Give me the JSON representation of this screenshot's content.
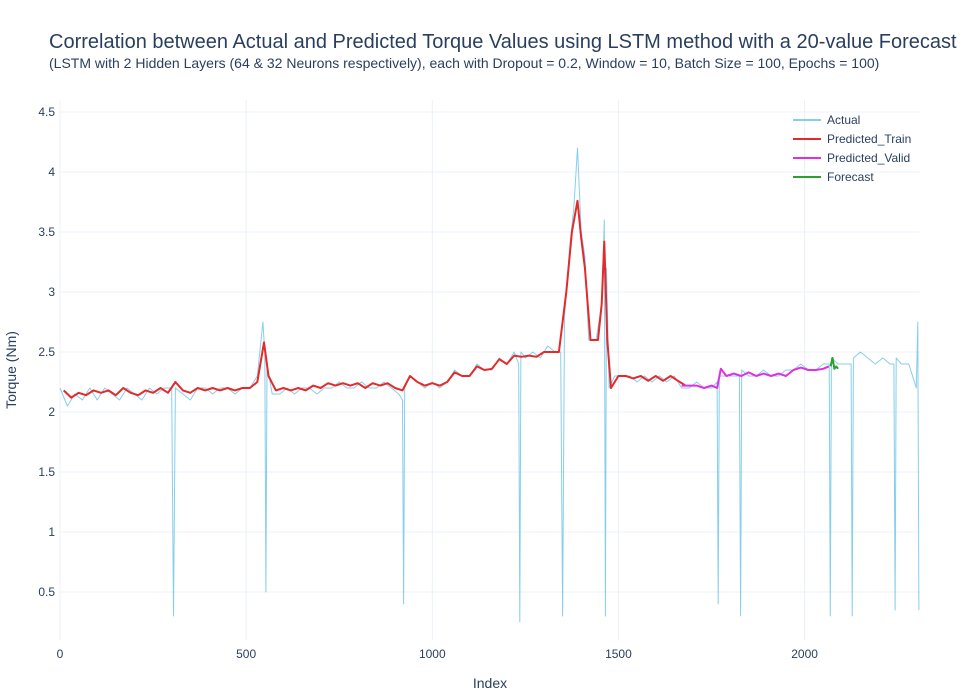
{
  "header": {
    "title": "Correlation between Actual and Predicted Torque Values using LSTM method with a 20-value Forecast",
    "subtitle": "(LSTM with 2 Hidden Layers (64 & 32 Neurons respectively), each with Dropout = 0.2, Window = 10, Batch Size = 100, Epochs = 100)"
  },
  "chart_data": {
    "type": "line",
    "xlabel": "Index",
    "ylabel": "Torque (Nm)",
    "xlim": [
      0,
      2310
    ],
    "ylim": [
      0.1,
      4.6
    ],
    "x_ticks": [
      0,
      500,
      1000,
      1500,
      2000
    ],
    "y_ticks": [
      0.5,
      1,
      1.5,
      2,
      2.5,
      3,
      3.5,
      4,
      4.5
    ],
    "x_tick_labels": [
      "0",
      "500",
      "1000",
      "1500",
      "2000"
    ],
    "y_tick_labels": [
      "0.5",
      "1",
      "1.5",
      "2",
      "2.5",
      "3",
      "3.5",
      "4",
      "4.5"
    ],
    "grid": true,
    "legend_position": "top-right",
    "series": [
      {
        "name": "Actual",
        "color": "#87ceeb",
        "points": [
          [
            0,
            2.2
          ],
          [
            20,
            2.05
          ],
          [
            40,
            2.15
          ],
          [
            60,
            2.1
          ],
          [
            80,
            2.2
          ],
          [
            100,
            2.1
          ],
          [
            120,
            2.2
          ],
          [
            140,
            2.15
          ],
          [
            160,
            2.1
          ],
          [
            180,
            2.2
          ],
          [
            200,
            2.15
          ],
          [
            220,
            2.1
          ],
          [
            240,
            2.2
          ],
          [
            260,
            2.15
          ],
          [
            280,
            2.2
          ],
          [
            300,
            2.2
          ],
          [
            305,
            0.3
          ],
          [
            310,
            2.2
          ],
          [
            330,
            2.15
          ],
          [
            350,
            2.1
          ],
          [
            370,
            2.2
          ],
          [
            390,
            2.2
          ],
          [
            410,
            2.15
          ],
          [
            430,
            2.2
          ],
          [
            450,
            2.2
          ],
          [
            470,
            2.15
          ],
          [
            490,
            2.2
          ],
          [
            510,
            2.2
          ],
          [
            530,
            2.3
          ],
          [
            545,
            2.75
          ],
          [
            550,
            2.5
          ],
          [
            553,
            0.5
          ],
          [
            556,
            2.4
          ],
          [
            570,
            2.15
          ],
          [
            590,
            2.15
          ],
          [
            610,
            2.2
          ],
          [
            630,
            2.15
          ],
          [
            650,
            2.2
          ],
          [
            670,
            2.2
          ],
          [
            690,
            2.15
          ],
          [
            710,
            2.2
          ],
          [
            730,
            2.2
          ],
          [
            750,
            2.25
          ],
          [
            770,
            2.2
          ],
          [
            790,
            2.2
          ],
          [
            810,
            2.25
          ],
          [
            830,
            2.2
          ],
          [
            850,
            2.2
          ],
          [
            870,
            2.25
          ],
          [
            890,
            2.2
          ],
          [
            910,
            2.15
          ],
          [
            920,
            2.1
          ],
          [
            923,
            0.4
          ],
          [
            926,
            2.2
          ],
          [
            940,
            2.3
          ],
          [
            960,
            2.25
          ],
          [
            980,
            2.2
          ],
          [
            1000,
            2.25
          ],
          [
            1020,
            2.2
          ],
          [
            1040,
            2.25
          ],
          [
            1060,
            2.35
          ],
          [
            1080,
            2.3
          ],
          [
            1100,
            2.3
          ],
          [
            1120,
            2.4
          ],
          [
            1140,
            2.35
          ],
          [
            1160,
            2.35
          ],
          [
            1180,
            2.45
          ],
          [
            1200,
            2.4
          ],
          [
            1220,
            2.5
          ],
          [
            1232,
            2.4
          ],
          [
            1235,
            0.25
          ],
          [
            1238,
            2.5
          ],
          [
            1250,
            2.45
          ],
          [
            1270,
            2.5
          ],
          [
            1290,
            2.45
          ],
          [
            1310,
            2.55
          ],
          [
            1330,
            2.5
          ],
          [
            1345,
            2.5
          ],
          [
            1350,
            0.3
          ],
          [
            1355,
            2.8
          ],
          [
            1370,
            3.4
          ],
          [
            1380,
            3.7
          ],
          [
            1390,
            4.2
          ],
          [
            1400,
            3.5
          ],
          [
            1410,
            3.3
          ],
          [
            1420,
            2.6
          ],
          [
            1440,
            2.6
          ],
          [
            1455,
            2.9
          ],
          [
            1462,
            3.6
          ],
          [
            1465,
            0.3
          ],
          [
            1468,
            3.2
          ],
          [
            1475,
            2.2
          ],
          [
            1490,
            2.3
          ],
          [
            1510,
            2.3
          ],
          [
            1530,
            2.3
          ],
          [
            1550,
            2.25
          ],
          [
            1570,
            2.3
          ],
          [
            1590,
            2.25
          ],
          [
            1610,
            2.3
          ],
          [
            1630,
            2.25
          ],
          [
            1650,
            2.3
          ],
          [
            1670,
            2.2
          ],
          [
            1690,
            2.2
          ],
          [
            1710,
            2.25
          ],
          [
            1730,
            2.2
          ],
          [
            1750,
            2.2
          ],
          [
            1765,
            2.25
          ],
          [
            1768,
            0.4
          ],
          [
            1771,
            2.3
          ],
          [
            1790,
            2.3
          ],
          [
            1810,
            2.3
          ],
          [
            1825,
            2.3
          ],
          [
            1828,
            0.3
          ],
          [
            1831,
            2.35
          ],
          [
            1850,
            2.3
          ],
          [
            1870,
            2.3
          ],
          [
            1890,
            2.35
          ],
          [
            1910,
            2.3
          ],
          [
            1930,
            2.3
          ],
          [
            1950,
            2.35
          ],
          [
            1970,
            2.35
          ],
          [
            1990,
            2.4
          ],
          [
            2010,
            2.35
          ],
          [
            2030,
            2.35
          ],
          [
            2050,
            2.4
          ],
          [
            2066,
            2.4
          ],
          [
            2069,
            0.3
          ],
          [
            2072,
            2.45
          ],
          [
            2090,
            2.4
          ],
          [
            2110,
            2.4
          ],
          [
            2125,
            2.4
          ],
          [
            2128,
            0.3
          ],
          [
            2131,
            2.45
          ],
          [
            2150,
            2.5
          ],
          [
            2170,
            2.45
          ],
          [
            2190,
            2.4
          ],
          [
            2210,
            2.45
          ],
          [
            2230,
            2.4
          ],
          [
            2240,
            2.4
          ],
          [
            2243,
            0.35
          ],
          [
            2246,
            2.45
          ],
          [
            2260,
            2.4
          ],
          [
            2280,
            2.4
          ],
          [
            2300,
            2.2
          ],
          [
            2304,
            2.75
          ],
          [
            2307,
            0.35
          ]
        ]
      },
      {
        "name": "Predicted_Train",
        "color": "#e32b2b",
        "points": [
          [
            10,
            2.18
          ],
          [
            30,
            2.12
          ],
          [
            50,
            2.16
          ],
          [
            70,
            2.14
          ],
          [
            90,
            2.18
          ],
          [
            110,
            2.16
          ],
          [
            130,
            2.18
          ],
          [
            150,
            2.14
          ],
          [
            170,
            2.2
          ],
          [
            190,
            2.16
          ],
          [
            210,
            2.14
          ],
          [
            230,
            2.18
          ],
          [
            250,
            2.16
          ],
          [
            270,
            2.2
          ],
          [
            290,
            2.16
          ],
          [
            310,
            2.25
          ],
          [
            330,
            2.18
          ],
          [
            350,
            2.16
          ],
          [
            370,
            2.2
          ],
          [
            390,
            2.18
          ],
          [
            410,
            2.2
          ],
          [
            430,
            2.18
          ],
          [
            450,
            2.2
          ],
          [
            470,
            2.18
          ],
          [
            490,
            2.2
          ],
          [
            510,
            2.2
          ],
          [
            530,
            2.25
          ],
          [
            548,
            2.58
          ],
          [
            560,
            2.3
          ],
          [
            580,
            2.18
          ],
          [
            600,
            2.2
          ],
          [
            620,
            2.18
          ],
          [
            640,
            2.2
          ],
          [
            660,
            2.18
          ],
          [
            680,
            2.22
          ],
          [
            700,
            2.2
          ],
          [
            720,
            2.24
          ],
          [
            740,
            2.22
          ],
          [
            760,
            2.24
          ],
          [
            780,
            2.22
          ],
          [
            800,
            2.24
          ],
          [
            820,
            2.2
          ],
          [
            840,
            2.24
          ],
          [
            860,
            2.22
          ],
          [
            880,
            2.24
          ],
          [
            900,
            2.2
          ],
          [
            920,
            2.18
          ],
          [
            940,
            2.3
          ],
          [
            960,
            2.25
          ],
          [
            980,
            2.22
          ],
          [
            1000,
            2.24
          ],
          [
            1020,
            2.22
          ],
          [
            1040,
            2.25
          ],
          [
            1060,
            2.33
          ],
          [
            1080,
            2.3
          ],
          [
            1100,
            2.3
          ],
          [
            1120,
            2.38
          ],
          [
            1140,
            2.35
          ],
          [
            1160,
            2.36
          ],
          [
            1180,
            2.44
          ],
          [
            1200,
            2.4
          ],
          [
            1220,
            2.47
          ],
          [
            1240,
            2.46
          ],
          [
            1260,
            2.47
          ],
          [
            1280,
            2.46
          ],
          [
            1300,
            2.5
          ],
          [
            1320,
            2.5
          ],
          [
            1340,
            2.5
          ],
          [
            1360,
            3.0
          ],
          [
            1375,
            3.5
          ],
          [
            1390,
            3.76
          ],
          [
            1400,
            3.45
          ],
          [
            1410,
            3.2
          ],
          [
            1425,
            2.6
          ],
          [
            1445,
            2.6
          ],
          [
            1455,
            2.9
          ],
          [
            1462,
            3.42
          ],
          [
            1470,
            2.6
          ],
          [
            1480,
            2.2
          ],
          [
            1500,
            2.3
          ],
          [
            1520,
            2.3
          ],
          [
            1540,
            2.28
          ],
          [
            1560,
            2.3
          ],
          [
            1580,
            2.26
          ],
          [
            1600,
            2.3
          ],
          [
            1620,
            2.26
          ],
          [
            1640,
            2.3
          ],
          [
            1660,
            2.26
          ],
          [
            1680,
            2.22
          ]
        ]
      },
      {
        "name": "Predicted_Valid",
        "color": "#e030e0",
        "points": [
          [
            1670,
            2.22
          ],
          [
            1690,
            2.22
          ],
          [
            1710,
            2.22
          ],
          [
            1730,
            2.2
          ],
          [
            1750,
            2.22
          ],
          [
            1765,
            2.2
          ],
          [
            1775,
            2.36
          ],
          [
            1790,
            2.3
          ],
          [
            1810,
            2.32
          ],
          [
            1830,
            2.3
          ],
          [
            1850,
            2.33
          ],
          [
            1870,
            2.3
          ],
          [
            1890,
            2.32
          ],
          [
            1910,
            2.3
          ],
          [
            1930,
            2.32
          ],
          [
            1950,
            2.3
          ],
          [
            1970,
            2.35
          ],
          [
            1990,
            2.37
          ],
          [
            2010,
            2.35
          ],
          [
            2030,
            2.35
          ],
          [
            2050,
            2.36
          ],
          [
            2065,
            2.38
          ]
        ]
      },
      {
        "name": "Forecast",
        "color": "#2ca02c",
        "points": [
          [
            2070,
            2.38
          ],
          [
            2075,
            2.45
          ],
          [
            2080,
            2.36
          ],
          [
            2085,
            2.38
          ],
          [
            2090,
            2.36
          ]
        ]
      }
    ]
  }
}
